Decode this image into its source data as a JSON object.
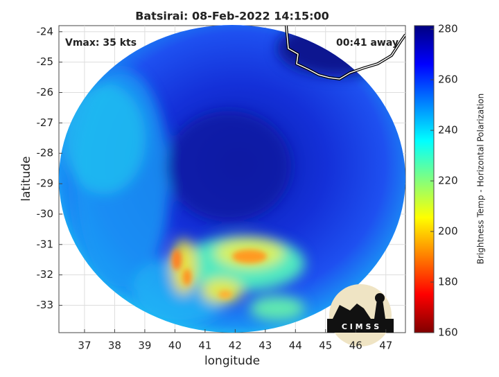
{
  "chart_data": {
    "type": "image",
    "title": "Batsirai: 08-Feb-2022 14:15:00",
    "xlabel": "longitude",
    "ylabel": "latitude",
    "xlim": [
      36.15,
      47.65
    ],
    "ylim": [
      -33.9,
      -23.8
    ],
    "xticks": [
      37,
      38,
      39,
      40,
      41,
      42,
      43,
      44,
      45,
      46,
      47
    ],
    "yticks": [
      -33,
      -32,
      -31,
      -30,
      -29,
      -28,
      -27,
      -26,
      -25,
      -24
    ],
    "grid": true,
    "annotations": [
      "Vmax: 35 kts",
      "00:41 away"
    ],
    "logo_text": "C I M S S",
    "colorbar": {
      "label": "Brightness Temp - Horizontal Polarization",
      "lim": [
        160,
        281.4
      ],
      "ticks": [
        160,
        180,
        200,
        220,
        240,
        260,
        280
      ],
      "colormap": [
        "#800000",
        "#ff0000",
        "#ff8000",
        "#ffff00",
        "#80ff80",
        "#00ffff",
        "#0080ff",
        "#0000ff",
        "#000080"
      ]
    }
  }
}
